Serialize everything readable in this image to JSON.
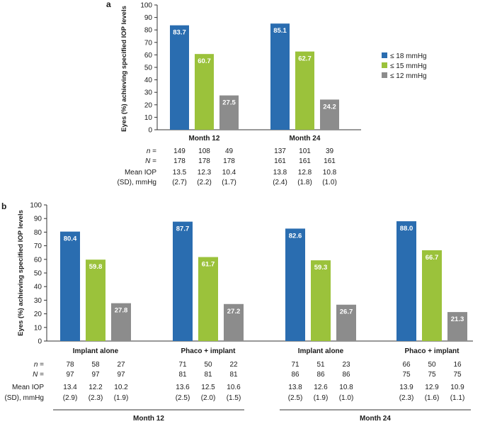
{
  "colors": {
    "le18": "#2a6db0",
    "le15": "#9bc23b",
    "le12": "#8c8c8c",
    "axis": "#333333"
  },
  "chart_data": [
    {
      "panel": "a",
      "type": "bar",
      "ylabel": "Eyes (%) achieving specified IOP levels",
      "ylim": [
        0,
        100
      ],
      "yticks": [
        0,
        10,
        20,
        30,
        40,
        50,
        60,
        70,
        80,
        90,
        100
      ],
      "categories": [
        "Month 12",
        "Month 24"
      ],
      "series": [
        {
          "name": "≤ 18 mmHg",
          "color": "#2a6db0",
          "values": [
            83.7,
            85.1
          ]
        },
        {
          "name": "≤ 15 mmHg",
          "color": "#9bc23b",
          "values": [
            60.7,
            62.7
          ]
        },
        {
          "name": "≤ 12 mmHg",
          "color": "#8c8c8c",
          "values": [
            27.5,
            24.2
          ]
        }
      ],
      "data_labels": [
        [
          "83.7",
          "60.7",
          "27.5"
        ],
        [
          "85.1",
          "62.7",
          "24.2"
        ]
      ],
      "legend": {
        "position": "right",
        "entries": [
          "≤ 18 mmHg",
          "≤ 15 mmHg",
          "≤ 12 mmHg"
        ]
      },
      "table": {
        "row_labels": [
          "n =",
          "N =",
          "Mean IOP",
          "(SD), mmHg"
        ],
        "values": [
          [
            [
              "149",
              "108",
              "49"
            ],
            [
              "137",
              "101",
              "39"
            ]
          ],
          [
            [
              "178",
              "178",
              "178"
            ],
            [
              "161",
              "161",
              "161"
            ]
          ],
          [
            [
              "13.5",
              "12.3",
              "10.4"
            ],
            [
              "13.8",
              "12.8",
              "10.8"
            ]
          ],
          [
            [
              "(2.7)",
              "(2.2)",
              "(1.7)"
            ],
            [
              "(2.4)",
              "(1.8)",
              "(1.0)"
            ]
          ]
        ]
      }
    },
    {
      "panel": "b",
      "type": "bar",
      "ylabel": "Eyes (%) achieving specified IOP levels",
      "ylim": [
        0,
        100
      ],
      "yticks": [
        0,
        10,
        20,
        30,
        40,
        50,
        60,
        70,
        80,
        90,
        100
      ],
      "categories": [
        "Implant alone",
        "Phaco + implant",
        "Implant alone",
        "Phaco + implant"
      ],
      "groups": [
        "Month 12",
        "Month 24"
      ],
      "series": [
        {
          "name": "≤ 18 mmHg",
          "color": "#2a6db0",
          "values": [
            80.4,
            87.7,
            82.6,
            88.0
          ]
        },
        {
          "name": "≤ 15 mmHg",
          "color": "#9bc23b",
          "values": [
            59.8,
            61.7,
            59.3,
            66.7
          ]
        },
        {
          "name": "≤ 12 mmHg",
          "color": "#8c8c8c",
          "values": [
            27.8,
            27.2,
            26.7,
            21.3
          ]
        }
      ],
      "data_labels": [
        [
          "80.4",
          "59.8",
          "27.8"
        ],
        [
          "87.7",
          "61.7",
          "27.2"
        ],
        [
          "82.6",
          "59.3",
          "26.7"
        ],
        [
          "88.0",
          "66.7",
          "21.3"
        ]
      ],
      "table": {
        "row_labels": [
          "n =",
          "N =",
          "Mean IOP",
          "(SD), mmHg"
        ],
        "values": [
          [
            [
              "78",
              "58",
              "27"
            ],
            [
              "71",
              "50",
              "22"
            ],
            [
              "71",
              "51",
              "23"
            ],
            [
              "66",
              "50",
              "16"
            ]
          ],
          [
            [
              "97",
              "97",
              "97"
            ],
            [
              "81",
              "81",
              "81"
            ],
            [
              "86",
              "86",
              "86"
            ],
            [
              "75",
              "75",
              "75"
            ]
          ],
          [
            [
              "13.4",
              "12.2",
              "10.2"
            ],
            [
              "13.6",
              "12.5",
              "10.6"
            ],
            [
              "13.8",
              "12.6",
              "10.8"
            ],
            [
              "13.9",
              "12.9",
              "10.9"
            ]
          ],
          [
            [
              "(2.9)",
              "(2.3)",
              "(1.9)"
            ],
            [
              "(2.5)",
              "(2.0)",
              "(1.5)"
            ],
            [
              "(2.5)",
              "(1.9)",
              "(1.0)"
            ],
            [
              "(2.3)",
              "(1.6)",
              "(1.1)"
            ]
          ]
        ]
      }
    }
  ]
}
